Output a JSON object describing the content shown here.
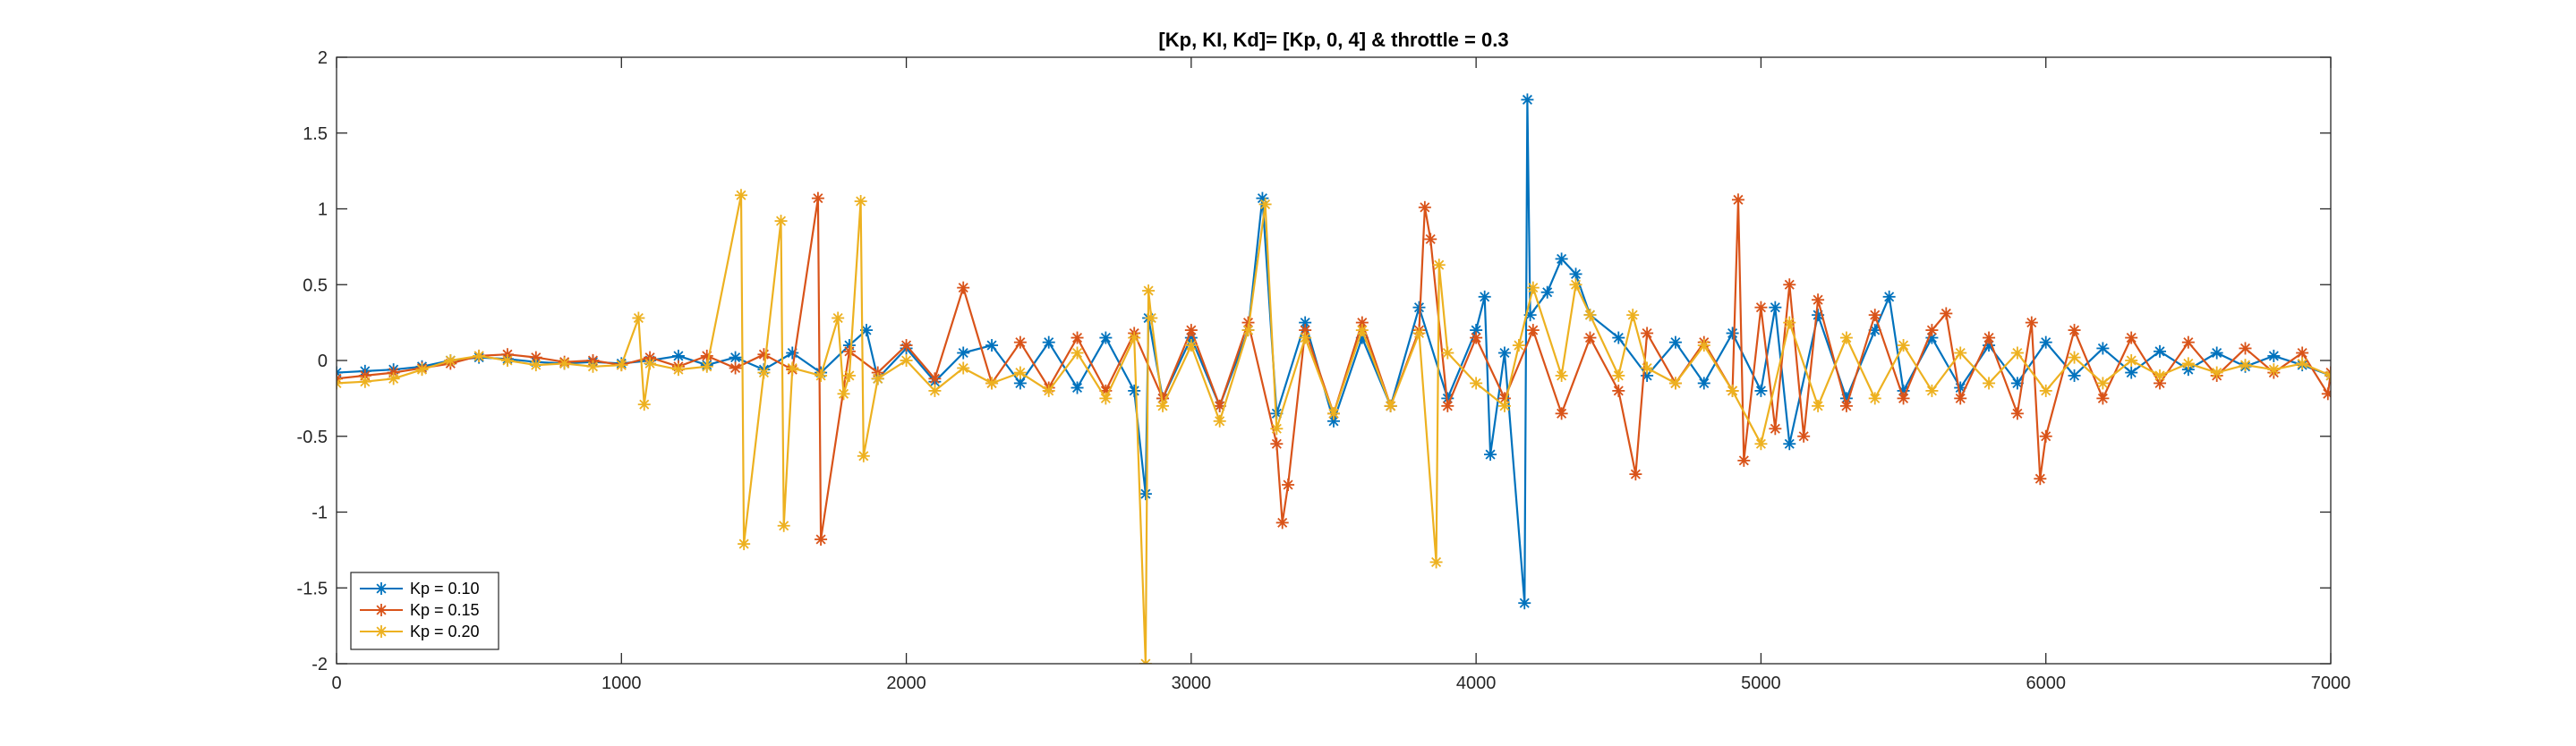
{
  "chart_data": {
    "type": "line",
    "title": "[Kp, KI, Kd]= [Kp, 0, 4] & throttle = 0.3",
    "xlabel": "",
    "ylabel": "",
    "xlim": [
      0,
      7000
    ],
    "ylim": [
      -2,
      2
    ],
    "xticks": [
      0,
      1000,
      2000,
      3000,
      4000,
      5000,
      6000,
      7000
    ],
    "yticks": [
      -2,
      -1.5,
      -1,
      -0.5,
      0,
      0.5,
      1,
      1.5,
      2
    ],
    "xtick_labels": [
      "0",
      "1000",
      "2000",
      "3000",
      "4000",
      "5000",
      "6000",
      "7000"
    ],
    "ytick_labels": [
      "-2",
      "-1.5",
      "-1",
      "-0.5",
      "0",
      "0.5",
      "1",
      "1.5",
      "2"
    ],
    "grid": false,
    "legend_position": "bottom-left",
    "marker": "*",
    "series": [
      {
        "name": "Kp = 0.10",
        "color": "#0072BD",
        "x": [
          0,
          100,
          200,
          300,
          400,
          500,
          600,
          700,
          800,
          900,
          1000,
          1100,
          1200,
          1300,
          1400,
          1500,
          1600,
          1700,
          1800,
          1860,
          1900,
          2000,
          2100,
          2200,
          2300,
          2400,
          2500,
          2600,
          2700,
          2800,
          2840,
          2850,
          2900,
          3000,
          3100,
          3200,
          3250,
          3300,
          3400,
          3500,
          3600,
          3700,
          3800,
          3900,
          4000,
          4030,
          4050,
          4100,
          4170,
          4180,
          4190,
          4250,
          4300,
          4350,
          4400,
          4500,
          4600,
          4700,
          4800,
          4900,
          5000,
          5050,
          5100,
          5200,
          5300,
          5400,
          5450,
          5500,
          5600,
          5700,
          5800,
          5900,
          6000,
          6100,
          6200,
          6300,
          6400,
          6500,
          6600,
          6700,
          6800,
          6900,
          7000
        ],
        "y": [
          -0.08,
          -0.07,
          -0.06,
          -0.04,
          0.0,
          0.02,
          0.01,
          -0.01,
          -0.02,
          -0.01,
          -0.02,
          0.0,
          0.03,
          -0.03,
          0.02,
          -0.06,
          0.05,
          -0.08,
          0.1,
          0.2,
          -0.12,
          0.08,
          -0.14,
          0.05,
          0.1,
          -0.15,
          0.12,
          -0.18,
          0.15,
          -0.2,
          -0.88,
          0.28,
          -0.25,
          0.15,
          -0.3,
          0.2,
          1.07,
          -0.35,
          0.25,
          -0.4,
          0.15,
          -0.3,
          0.35,
          -0.25,
          0.2,
          0.42,
          -0.62,
          0.05,
          -1.6,
          1.72,
          0.3,
          0.45,
          0.67,
          0.57,
          0.3,
          0.15,
          -0.1,
          0.12,
          -0.15,
          0.18,
          -0.2,
          0.35,
          -0.55,
          0.3,
          -0.25,
          0.2,
          0.42,
          -0.2,
          0.15,
          -0.18,
          0.1,
          -0.15,
          0.12,
          -0.1,
          0.08,
          -0.08,
          0.06,
          -0.06,
          0.05,
          -0.04,
          0.03,
          -0.03,
          -0.1
        ]
      },
      {
        "name": "Kp = 0.15",
        "color": "#D95319",
        "x": [
          0,
          100,
          200,
          300,
          400,
          500,
          600,
          700,
          800,
          900,
          1000,
          1100,
          1200,
          1300,
          1400,
          1500,
          1600,
          1690,
          1700,
          1800,
          1900,
          2000,
          2100,
          2200,
          2300,
          2400,
          2500,
          2600,
          2700,
          2800,
          2900,
          3000,
          3100,
          3200,
          3300,
          3320,
          3340,
          3400,
          3500,
          3600,
          3700,
          3800,
          3820,
          3840,
          3900,
          4000,
          4100,
          4200,
          4300,
          4400,
          4500,
          4560,
          4600,
          4700,
          4800,
          4900,
          4920,
          4940,
          5000,
          5050,
          5100,
          5150,
          5200,
          5300,
          5400,
          5500,
          5600,
          5650,
          5700,
          5800,
          5900,
          5950,
          5980,
          6000,
          6100,
          6200,
          6300,
          6400,
          6500,
          6600,
          6700,
          6800,
          6900,
          6990,
          7000
        ],
        "y": [
          -0.12,
          -0.1,
          -0.08,
          -0.05,
          -0.02,
          0.03,
          0.04,
          0.02,
          -0.01,
          0.0,
          -0.03,
          0.02,
          -0.04,
          0.03,
          -0.05,
          0.04,
          -0.06,
          1.07,
          -1.18,
          0.06,
          -0.08,
          0.1,
          -0.12,
          0.48,
          -0.15,
          0.12,
          -0.18,
          0.15,
          -0.2,
          0.18,
          -0.25,
          0.2,
          -0.3,
          0.25,
          -0.55,
          -1.07,
          -0.82,
          0.2,
          -0.35,
          0.25,
          -0.3,
          0.2,
          1.01,
          0.8,
          -0.3,
          0.15,
          -0.25,
          0.2,
          -0.35,
          0.15,
          -0.2,
          -0.75,
          0.18,
          -0.15,
          0.12,
          -0.2,
          1.06,
          -0.66,
          0.35,
          -0.45,
          0.5,
          -0.5,
          0.4,
          -0.3,
          0.3,
          -0.25,
          0.2,
          0.31,
          -0.25,
          0.15,
          -0.35,
          0.25,
          -0.78,
          -0.5,
          0.2,
          -0.25,
          0.15,
          -0.15,
          0.12,
          -0.1,
          0.08,
          -0.08,
          0.05,
          -0.22,
          -0.08
        ]
      },
      {
        "name": "Kp = 0.20",
        "color": "#EDB120",
        "x": [
          0,
          100,
          200,
          300,
          400,
          500,
          600,
          700,
          800,
          900,
          1000,
          1060,
          1080,
          1100,
          1200,
          1300,
          1420,
          1430,
          1500,
          1560,
          1570,
          1600,
          1700,
          1760,
          1780,
          1800,
          1840,
          1850,
          1900,
          2000,
          2100,
          2200,
          2300,
          2400,
          2500,
          2600,
          2700,
          2800,
          2840,
          2850,
          2860,
          2900,
          3000,
          3100,
          3200,
          3260,
          3300,
          3400,
          3500,
          3600,
          3700,
          3800,
          3860,
          3870,
          3900,
          4000,
          4100,
          4150,
          4200,
          4300,
          4350,
          4400,
          4500,
          4550,
          4600,
          4700,
          4800,
          4900,
          5000,
          5100,
          5200,
          5300,
          5400,
          5500,
          5600,
          5700,
          5800,
          5900,
          6000,
          6100,
          6200,
          6300,
          6400,
          6500,
          6600,
          6700,
          6800,
          6900,
          7000
        ],
        "y": [
          -0.15,
          -0.14,
          -0.12,
          -0.06,
          0.0,
          0.03,
          0.0,
          -0.03,
          -0.02,
          -0.04,
          -0.03,
          0.28,
          -0.29,
          -0.02,
          -0.06,
          -0.04,
          1.09,
          -1.21,
          -0.08,
          0.92,
          -1.09,
          -0.05,
          -0.1,
          0.28,
          -0.22,
          -0.1,
          1.05,
          -0.63,
          -0.12,
          0.0,
          -0.2,
          -0.05,
          -0.15,
          -0.08,
          -0.2,
          0.05,
          -0.25,
          0.15,
          -2.0,
          0.46,
          0.28,
          -0.3,
          0.1,
          -0.4,
          0.2,
          1.03,
          -0.45,
          0.15,
          -0.35,
          0.2,
          -0.3,
          0.18,
          -1.33,
          0.63,
          0.05,
          -0.15,
          -0.3,
          0.1,
          0.48,
          -0.1,
          0.5,
          0.3,
          -0.1,
          0.3,
          -0.05,
          -0.15,
          0.1,
          -0.2,
          -0.55,
          0.25,
          -0.3,
          0.15,
          -0.25,
          0.1,
          -0.2,
          0.05,
          -0.15,
          0.05,
          -0.2,
          0.02,
          -0.15,
          0.0,
          -0.1,
          -0.02,
          -0.08,
          -0.03,
          -0.06,
          -0.02,
          -0.1
        ]
      }
    ]
  }
}
